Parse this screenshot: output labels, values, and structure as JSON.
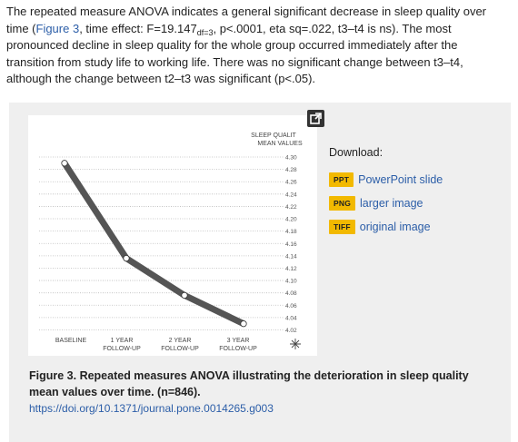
{
  "paragraph": {
    "part1": "The repeated measure ANOVA indicates a general significant decrease in sleep quality over time (",
    "figure_link": "Figure 3",
    "part2": ", time effect: F=19.147",
    "subscript": "df=3",
    "part3": ", p<.0001, eta sq=.022, t3–t4 is ns). The most pronounced decline in sleep quality for the whole group occurred immediately after the transition from study life to working life. There was no significant change between t3–t4, although the change between t2–t3 was significant (p<.05)."
  },
  "figure": {
    "expand_icon": "expand-icon",
    "download_label": "Download:",
    "downloads": [
      {
        "badge": "PPT",
        "label": "PowerPoint slide"
      },
      {
        "badge": "PNG",
        "label": "larger image"
      },
      {
        "badge": "TIFF",
        "label": "original image"
      }
    ],
    "caption": "Figure 3. Repeated measures ANOVA illustrating the deterioration in sleep quality mean values over time. (n=846).",
    "doi": "https://doi.org/10.1371/journal.pone.0014265.g003"
  },
  "chart_data": {
    "type": "line",
    "ylabel_line1": "SLEEP QUALIT",
    "ylabel_line2": "MEAN VALUES",
    "ylim": [
      4.02,
      4.3
    ],
    "yticks": [
      "4.30",
      "4.28",
      "4.26",
      "4.24",
      "4.22",
      "4.20",
      "4.18",
      "4.16",
      "4.14",
      "4.12",
      "4.10",
      "4.08",
      "4.06",
      "4.04",
      "4.02"
    ],
    "categories": [
      "BASELINE",
      "1 YEAR FOLLOW-UP",
      "2 YEAR FOLLOW-UP",
      "3 YEAR FOLLOW-UP"
    ],
    "category_lines": [
      [
        "BASELINE"
      ],
      [
        "1 YEAR",
        "FOLLOW-UP"
      ],
      [
        "2 YEAR",
        "FOLLOW-UP"
      ],
      [
        "3 YEAR",
        "FOLLOW-UP"
      ]
    ],
    "values": [
      4.29,
      4.136,
      4.076,
      4.03
    ],
    "grid": true,
    "line_color": "#555555"
  }
}
